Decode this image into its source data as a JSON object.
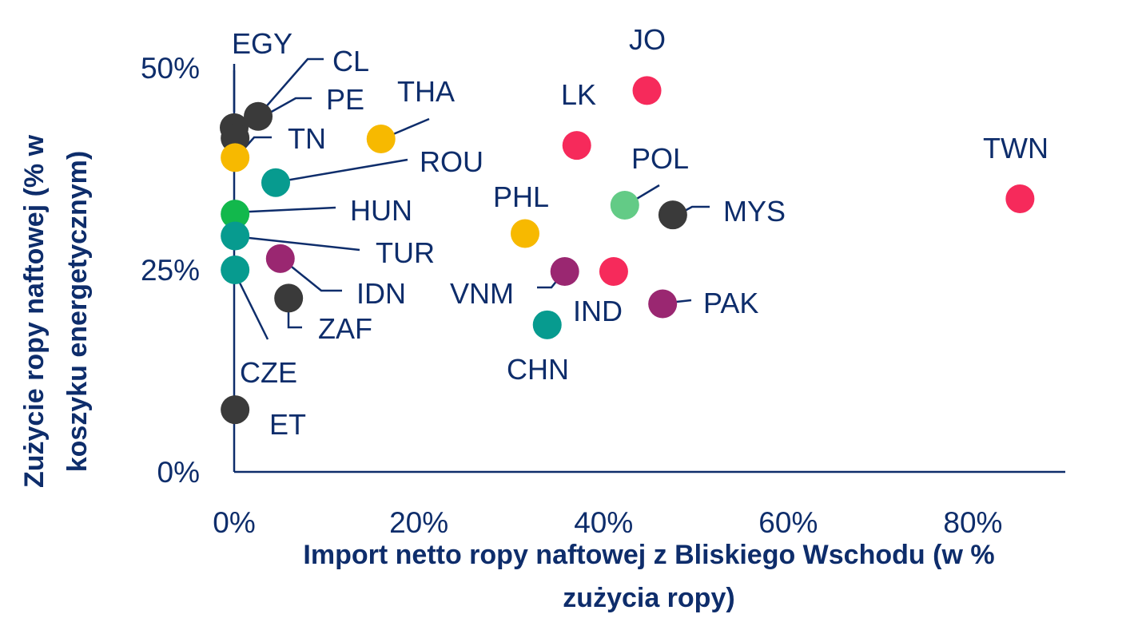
{
  "chart_data": {
    "type": "scatter",
    "xlabel_lines": [
      "Import netto ropy naftowej z Bliskiego Wschodu (w %",
      "zużycia ropy)"
    ],
    "ylabel_lines": [
      "Zużycie ropy naftowej (% w",
      "koszyku energetycznym)"
    ],
    "xlim": [
      0,
      0.9
    ],
    "ylim": [
      0,
      0.5
    ],
    "x_ticks": [
      {
        "value": 0,
        "label": "0%"
      },
      {
        "value": 0.2,
        "label": "20%"
      },
      {
        "value": 0.4,
        "label": "40%"
      },
      {
        "value": 0.6,
        "label": "60%"
      },
      {
        "value": 0.8,
        "label": "80%"
      }
    ],
    "y_ticks": [
      {
        "value": 0,
        "label": "0%"
      },
      {
        "value": 0.25,
        "label": "25%"
      },
      {
        "value": 0.5,
        "label": "50%"
      }
    ],
    "colors": {
      "dark_gray": "#3a3a3a",
      "yellow": "#f7b900",
      "teal": "#079b8f",
      "green": "#12b84c",
      "light_green": "#63cb86",
      "purple": "#9a2771",
      "red": "#f62a5b",
      "text": "#0e2d6b",
      "axis": "#0e2d6b"
    },
    "points": [
      {
        "label": "EGY",
        "x": 0.0,
        "y": 0.426,
        "color": "dark_gray"
      },
      {
        "label": "CL",
        "x": 0.026,
        "y": 0.44,
        "color": "dark_gray"
      },
      {
        "label": "PE",
        "x": 0.001,
        "y": 0.413,
        "color": "dark_gray"
      },
      {
        "label": "TN",
        "x": 0.001,
        "y": 0.389,
        "color": "yellow"
      },
      {
        "label": "THA",
        "x": 0.159,
        "y": 0.412,
        "color": "yellow"
      },
      {
        "label": "ROU",
        "x": 0.045,
        "y": 0.358,
        "color": "teal"
      },
      {
        "label": "HUN",
        "x": 0.001,
        "y": 0.319,
        "color": "green"
      },
      {
        "label": "TUR",
        "x": 0.001,
        "y": 0.292,
        "color": "teal"
      },
      {
        "label": "CZE",
        "x": 0.001,
        "y": 0.25,
        "color": "teal"
      },
      {
        "label": "IDN",
        "x": 0.05,
        "y": 0.264,
        "color": "purple"
      },
      {
        "label": "ZAF",
        "x": 0.059,
        "y": 0.215,
        "color": "dark_gray"
      },
      {
        "label": "ET",
        "x": 0.001,
        "y": 0.077,
        "color": "dark_gray"
      },
      {
        "label": "PHL",
        "x": 0.315,
        "y": 0.295,
        "color": "yellow"
      },
      {
        "label": "VNM",
        "x": 0.358,
        "y": 0.248,
        "color": "purple"
      },
      {
        "label": "CHN",
        "x": 0.339,
        "y": 0.182,
        "color": "teal"
      },
      {
        "label": "LK",
        "x": 0.371,
        "y": 0.404,
        "color": "red"
      },
      {
        "label": "IND",
        "x": 0.411,
        "y": 0.248,
        "color": "red"
      },
      {
        "label": "JO",
        "x": 0.447,
        "y": 0.472,
        "color": "red"
      },
      {
        "label": "POL",
        "x": 0.423,
        "y": 0.33,
        "color": "light_green"
      },
      {
        "label": "MYS",
        "x": 0.475,
        "y": 0.318,
        "color": "dark_gray"
      },
      {
        "label": "PAK",
        "x": 0.464,
        "y": 0.208,
        "color": "purple"
      },
      {
        "label": "TWN",
        "x": 0.851,
        "y": 0.338,
        "color": "red"
      }
    ]
  }
}
